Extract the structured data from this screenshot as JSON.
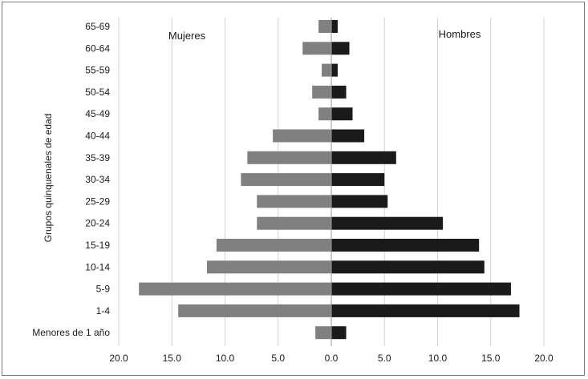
{
  "chart_data": {
    "type": "bar",
    "orientation": "horizontal",
    "title": "",
    "ylabel": "Grupos quinquenales de edad",
    "xlabel": "",
    "xlim": [
      -20,
      20
    ],
    "grid": true,
    "xticks": [
      "20.0",
      "15.0",
      "10.0",
      "5.0",
      "0.0",
      "5.0",
      "10.0",
      "15.0",
      "20.0"
    ],
    "categories": [
      "65-69",
      "60-64",
      "55-59",
      "50-54",
      "45-49",
      "40-44",
      "35-39",
      "30-34",
      "25-29",
      "20-24",
      "15-19",
      "10-14",
      "5-9",
      "1-4",
      "Menores de 1 año"
    ],
    "series": [
      {
        "name": "Mujeres",
        "color": "#808080",
        "values": [
          1.2,
          2.7,
          0.9,
          1.8,
          1.2,
          5.5,
          7.9,
          8.5,
          7.0,
          7.0,
          10.8,
          11.7,
          18.1,
          14.4,
          1.5
        ]
      },
      {
        "name": "Hombres",
        "color": "#1a1a1a",
        "values": [
          0.6,
          1.7,
          0.6,
          1.4,
          2.0,
          3.1,
          6.1,
          5.0,
          5.3,
          10.5,
          13.9,
          14.4,
          16.9,
          17.7,
          1.4
        ]
      }
    ]
  }
}
